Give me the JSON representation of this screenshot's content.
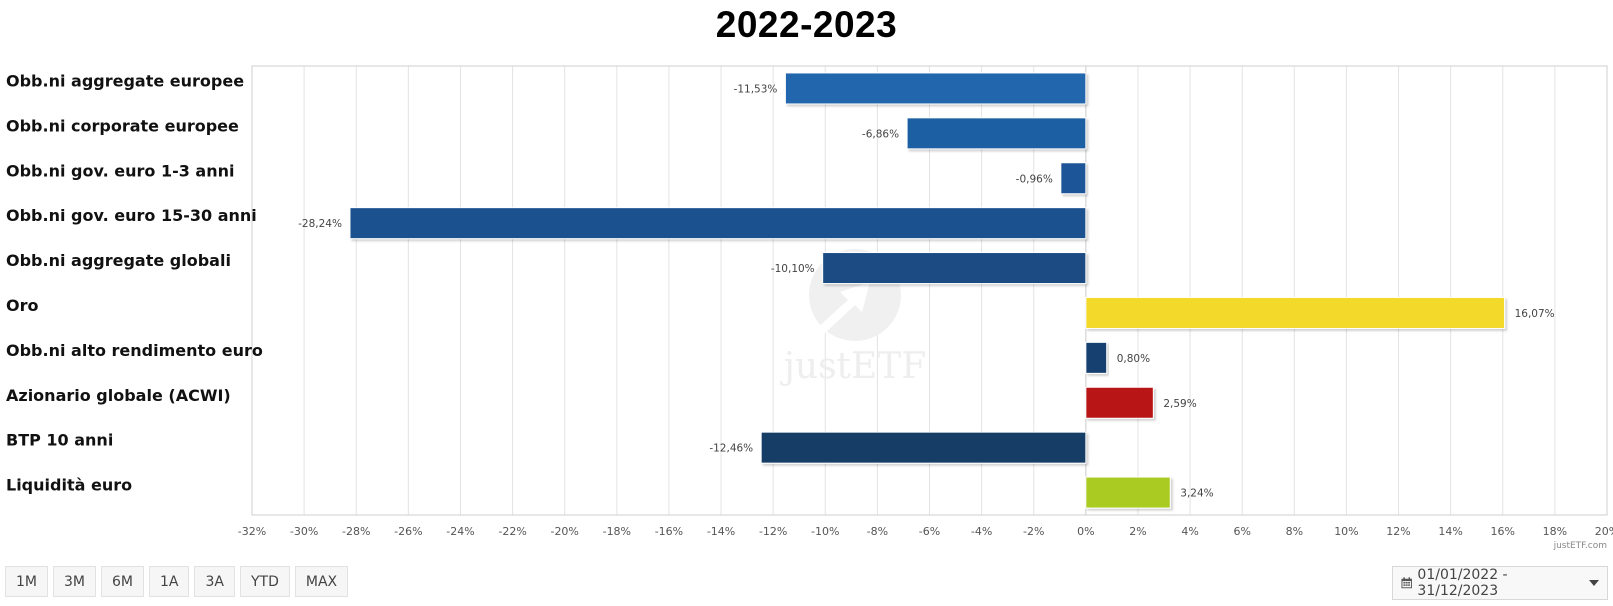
{
  "chart_data": {
    "type": "bar",
    "orientation": "horizontal",
    "title": "2022-2023",
    "categories": [
      "Obb.ni aggregate europee",
      "Obb.ni corporate europee",
      "Obb.ni gov. euro 1-3 anni",
      "Obb.ni gov. euro 15-30 anni",
      "Obb.ni aggregate globali",
      "Oro",
      "Obb.ni alto rendimento euro",
      "Azionario globale (ACWI)",
      "BTP 10 anni",
      "Liquidità euro"
    ],
    "values": [
      -11.53,
      -6.86,
      -0.96,
      -28.24,
      -10.1,
      16.07,
      0.8,
      2.59,
      -12.46,
      3.24
    ],
    "value_labels": [
      "-11,53%",
      "-6,86%",
      "-0,96%",
      "-28,24%",
      "-10,10%",
      "16,07%",
      "0,80%",
      "2,59%",
      "-12,46%",
      "3,24%"
    ],
    "colors": [
      "#2166ae",
      "#1f5fa2",
      "#1d5799",
      "#1b5190",
      "#1a4b83",
      "#f2d92c",
      "#18406f",
      "#b81515",
      "#143c66",
      "#a9cb22"
    ],
    "xlim": [
      -32,
      20
    ],
    "xticks": [
      -32,
      -30,
      -28,
      -26,
      -24,
      -22,
      -20,
      -18,
      -16,
      -14,
      -12,
      -10,
      -8,
      -6,
      -4,
      -2,
      0,
      2,
      4,
      6,
      8,
      10,
      12,
      14,
      16,
      18,
      20
    ],
    "xtick_labels": [
      "-32%",
      "-30%",
      "-28%",
      "-26%",
      "-24%",
      "-22%",
      "-20%",
      "-18%",
      "-16%",
      "-14%",
      "-12%",
      "-10%",
      "-8%",
      "-6%",
      "-4%",
      "-2%",
      "0%",
      "2%",
      "4%",
      "6%",
      "8%",
      "10%",
      "12%",
      "14%",
      "16%",
      "18%",
      "20%"
    ],
    "grid": true,
    "xlabel": "",
    "ylabel": ""
  },
  "credit": "justETF.com",
  "watermark": "justETF",
  "range_buttons": [
    "1M",
    "3M",
    "6M",
    "1A",
    "3A",
    "YTD",
    "MAX"
  ],
  "date_range": "01/01/2022 - 31/12/2023",
  "icons": {
    "date_picker": "calendar-icon",
    "dropdown": "caret-down-icon"
  }
}
